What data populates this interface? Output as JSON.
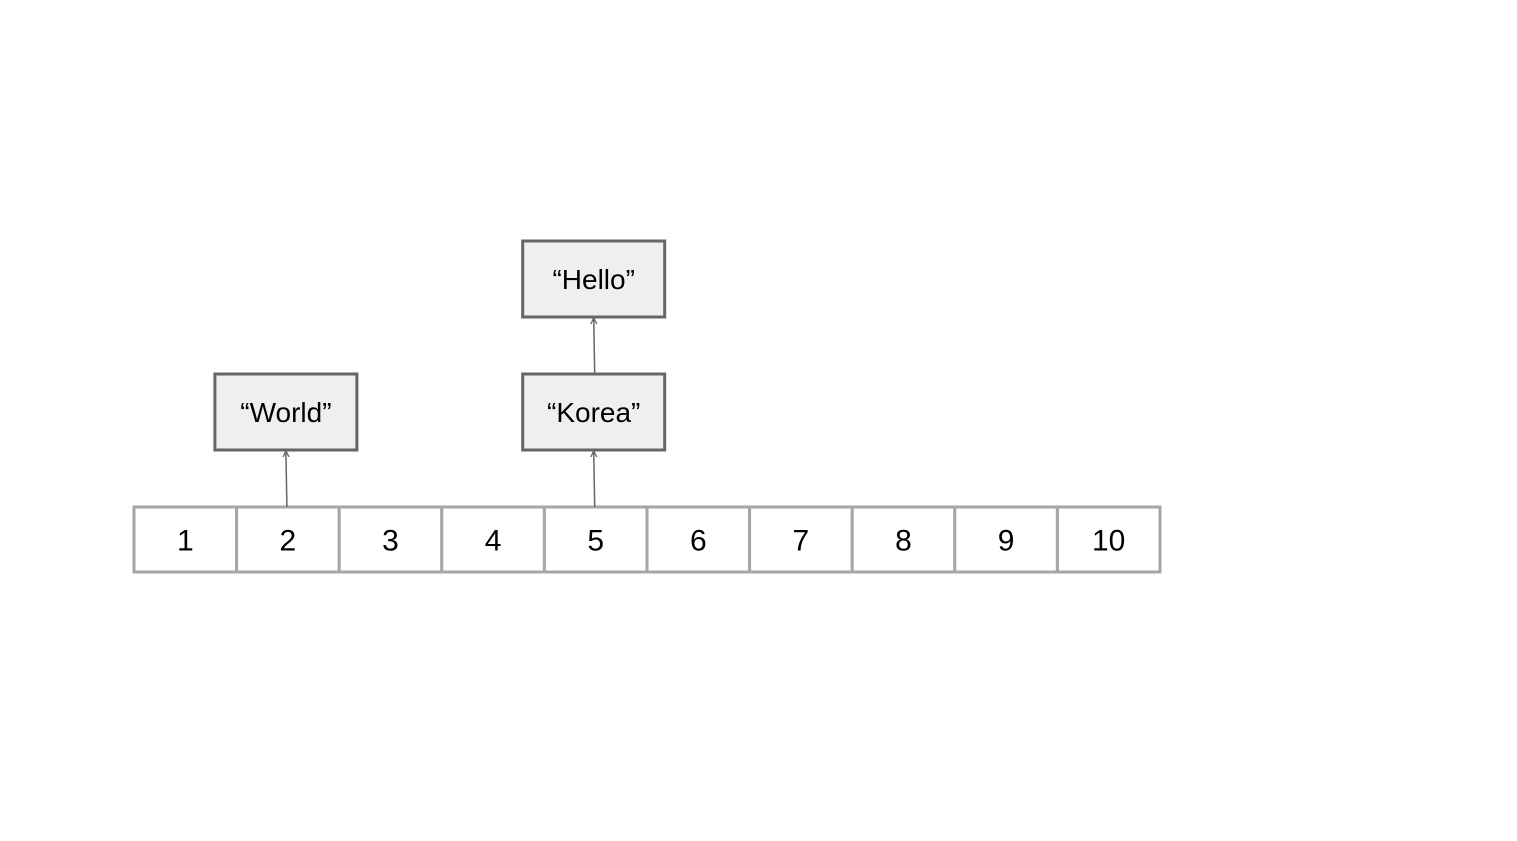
{
  "table": {
    "cells": [
      "1",
      "2",
      "3",
      "4",
      "5",
      "6",
      "7",
      "8",
      "9",
      "10"
    ]
  },
  "chains": [
    {
      "cell_index": 1,
      "nodes": [
        "“World”"
      ]
    },
    {
      "cell_index": 4,
      "nodes": [
        "“Korea”",
        "“Hello”"
      ]
    }
  ],
  "colors": {
    "cell_border": "#a6a6a6",
    "node_fill": "#efefef",
    "node_border": "#666666",
    "arrow": "#666666"
  }
}
